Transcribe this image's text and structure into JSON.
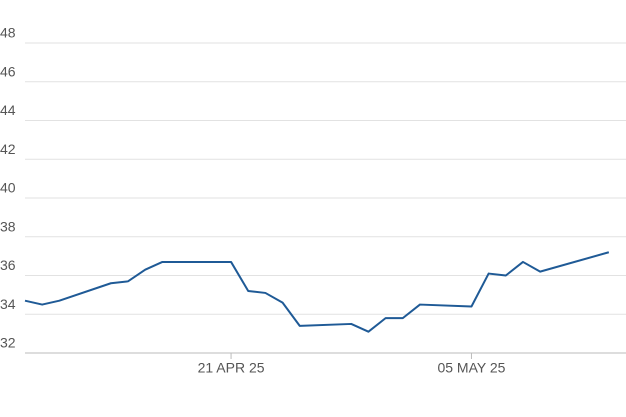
{
  "chart_data": {
    "type": "line",
    "x": [
      "2025-04-09",
      "2025-04-10",
      "2025-04-11",
      "2025-04-14",
      "2025-04-15",
      "2025-04-16",
      "2025-04-17",
      "2025-04-21",
      "2025-04-22",
      "2025-04-23",
      "2025-04-24",
      "2025-04-25",
      "2025-04-28",
      "2025-04-29",
      "2025-04-30",
      "2025-05-01",
      "2025-05-02",
      "2025-05-05",
      "2025-05-06",
      "2025-05-07",
      "2025-05-08",
      "2025-05-09",
      "2025-05-13"
    ],
    "series": [
      {
        "color": "#1f5a96",
        "values": [
          34.7,
          34.5,
          34.7,
          35.6,
          35.7,
          36.3,
          36.7,
          36.7,
          35.2,
          35.1,
          34.6,
          33.4,
          33.5,
          33.1,
          33.8,
          33.8,
          34.5,
          34.4,
          36.1,
          36.0,
          36.7,
          36.2,
          37.2
        ]
      }
    ],
    "xlim": [
      "2025-04-09",
      "2025-05-14"
    ],
    "xticks": [
      {
        "value": "2025-04-21",
        "label": "21 APR 25"
      },
      {
        "value": "2025-05-05",
        "label": "05 MAY 25"
      }
    ],
    "ylim": [
      32,
      48
    ],
    "yticks": [
      32,
      34,
      36,
      38,
      40,
      42,
      44,
      46,
      48
    ],
    "grid": true
  }
}
